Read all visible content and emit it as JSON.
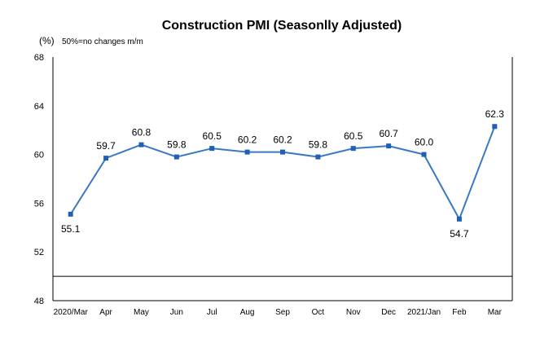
{
  "chart_data": {
    "type": "line",
    "title": "Construction PMI (Seasonlly Adjusted)",
    "ylabel": "(%)",
    "note": "50%=no changes  m/m",
    "categories": [
      "2020/Mar",
      "Apr",
      "May",
      "Jun",
      "Jul",
      "Aug",
      "Sep",
      "Oct",
      "Nov",
      "Dec",
      "2021/Jan",
      "Feb",
      "Mar"
    ],
    "yticks": [
      "68",
      "64",
      "60",
      "56",
      "52",
      "48"
    ],
    "ylim": [
      48,
      68
    ],
    "reference_line": 50,
    "grid": false,
    "series": [
      {
        "values": [
          55.1,
          59.7,
          60.8,
          59.8,
          60.5,
          60.2,
          60.2,
          59.8,
          60.5,
          60.7,
          60.0,
          54.7,
          62.3
        ],
        "labels": [
          "55.1",
          "59.7",
          "60.8",
          "59.8",
          "60.5",
          "60.2",
          "60.2",
          "59.8",
          "60.5",
          "60.7",
          "60.0",
          "54.7",
          "62.3"
        ],
        "color": "#3a78c4"
      }
    ]
  }
}
